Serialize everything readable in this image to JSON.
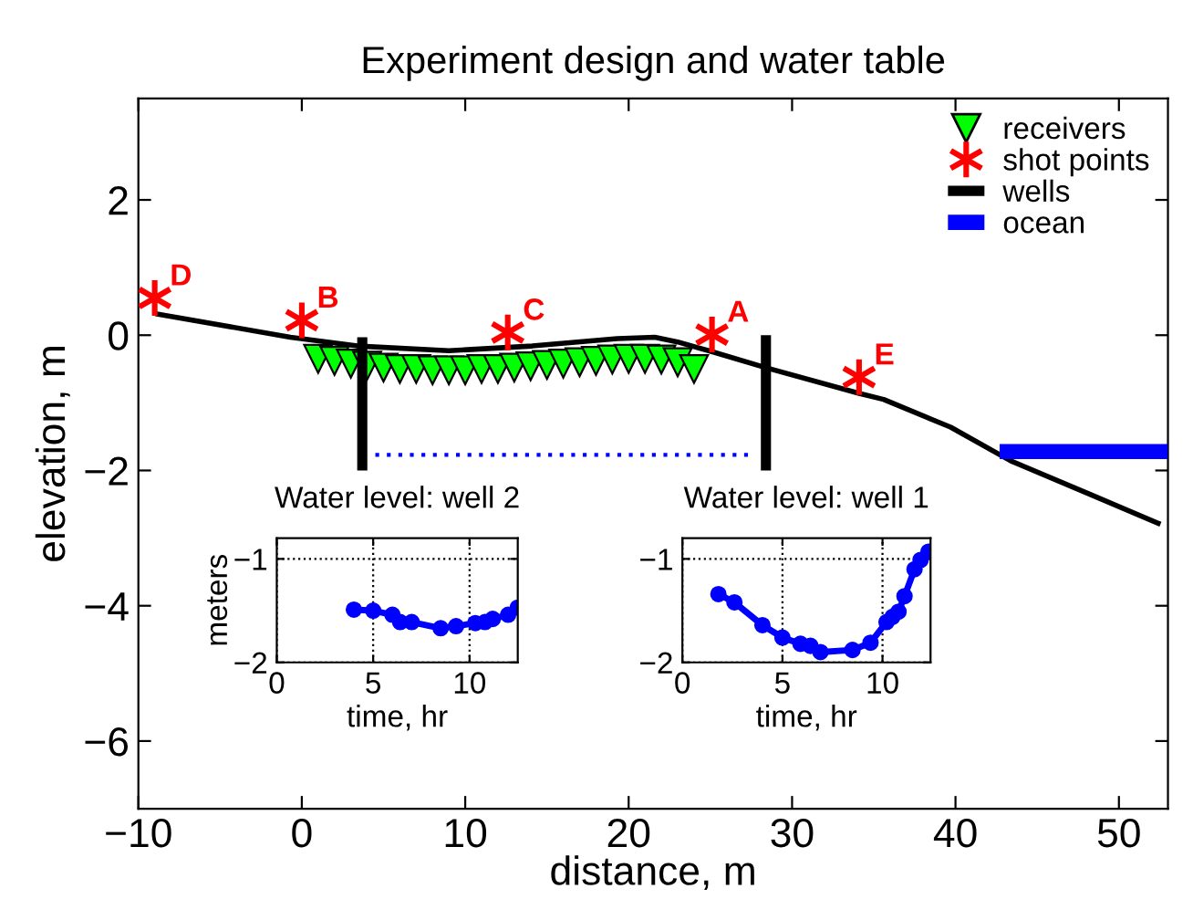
{
  "chart_data": [
    {
      "type": "line",
      "title": "Experiment design and water table",
      "xlabel": "distance, m",
      "ylabel": "elevation, m",
      "xlim": [
        -10,
        53
      ],
      "xticks": [
        -10,
        0,
        10,
        20,
        30,
        40,
        50
      ],
      "ylim": [
        -7,
        3.5
      ],
      "yticks": [
        -6,
        -4,
        -2,
        0,
        2
      ],
      "grid": false,
      "legend": "top right",
      "series": [
        {
          "type": "line",
          "color": "#000000",
          "x": [
            -8.8,
            -0.7,
            3.4,
            9.0,
            14.1,
            19.3,
            21.6,
            23.0,
            24.9,
            28.4,
            34.1,
            35.6,
            39.7,
            43.4,
            48.2,
            52.4
          ],
          "values": [
            0.31,
            -0.03,
            -0.16,
            -0.23,
            -0.16,
            -0.05,
            -0.03,
            -0.1,
            -0.23,
            -0.48,
            -0.86,
            -0.95,
            -1.36,
            -1.86,
            -2.35,
            -2.78
          ]
        },
        {
          "type": "scatter",
          "name": "receivers",
          "color": "#00ff00",
          "marker": "triangle",
          "x": [
            1,
            2,
            3,
            4,
            5,
            6,
            7,
            8,
            9,
            10,
            11,
            12,
            13,
            14,
            15,
            16,
            17,
            18,
            19,
            20,
            21,
            22,
            23,
            24
          ],
          "values": [
            -0.35,
            -0.38,
            -0.42,
            -0.45,
            -0.48,
            -0.5,
            -0.5,
            -0.52,
            -0.52,
            -0.52,
            -0.5,
            -0.5,
            -0.48,
            -0.46,
            -0.44,
            -0.42,
            -0.4,
            -0.38,
            -0.36,
            -0.35,
            -0.35,
            -0.36,
            -0.4,
            -0.5
          ]
        },
        {
          "type": "scatter",
          "name": "shot points",
          "color": "#ff0000",
          "marker": "cross",
          "x": [
            -9.0,
            0.0,
            12.6,
            25.1,
            34.1
          ],
          "values": [
            0.55,
            0.22,
            0.04,
            0.01,
            -0.62
          ]
        },
        {
          "type": "line",
          "name": "wells",
          "color": "#000000",
          "x": [
            3.7,
            3.7,
            16,
            28.4,
            28.4
          ],
          "values": [
            -0.03,
            -2.0,
            null,
            0.0,
            -2.0
          ]
        },
        {
          "type": "line",
          "color": "#0000ff",
          "line_style": "dotted",
          "x": [
            4.5,
            27.3
          ],
          "values": [
            -1.77,
            -1.77
          ]
        },
        {
          "type": "line",
          "name": "ocean",
          "color": "#0000ff",
          "x": [
            42.7,
            53
          ],
          "values": [
            -1.72,
            -1.72
          ]
        }
      ],
      "annotations": [
        {
          "text": "D",
          "x": -9.0,
          "y": 0.55
        },
        {
          "text": "B",
          "x": 0.0,
          "y": 0.22
        },
        {
          "text": "C",
          "x": 12.6,
          "y": 0.04
        },
        {
          "text": "A",
          "x": 25.1,
          "y": 0.01
        },
        {
          "text": "E",
          "x": 34.1,
          "y": -0.62
        }
      ]
    },
    {
      "type": "line",
      "title": "Water level: well 2",
      "xlabel": "time, hr",
      "ylabel": "meters",
      "xlim": [
        0,
        12.5
      ],
      "xticks": [
        0,
        5,
        10
      ],
      "ylim": [
        -2,
        -0.8
      ],
      "yticks": [
        -2,
        -1
      ],
      "grid": true,
      "marker": "circle",
      "series": [
        {
          "color": "#0000ff",
          "x": [
            4.0,
            5.0,
            6.0,
            6.4,
            7.0,
            8.5,
            9.3,
            10.3,
            10.8,
            11.2,
            12.0,
            12.5
          ],
          "values": [
            -1.49,
            -1.5,
            -1.54,
            -1.61,
            -1.61,
            -1.67,
            -1.65,
            -1.62,
            -1.61,
            -1.58,
            -1.54,
            -1.47
          ]
        }
      ]
    },
    {
      "type": "line",
      "title": "Water level: well 1",
      "xlabel": "time, hr",
      "xlim": [
        0,
        12.4
      ],
      "xticks": [
        0,
        5,
        10
      ],
      "ylim": [
        -2,
        -0.8
      ],
      "yticks": [
        -2,
        -1
      ],
      "grid": true,
      "marker": "circle",
      "series": [
        {
          "color": "#0000ff",
          "x": [
            1.8,
            2.6,
            4.0,
            5.0,
            5.9,
            6.4,
            6.9,
            8.5,
            9.4,
            10.2,
            10.5,
            10.8,
            11.1,
            11.6,
            11.9,
            12.3
          ],
          "values": [
            -1.34,
            -1.42,
            -1.64,
            -1.76,
            -1.82,
            -1.84,
            -1.9,
            -1.88,
            -1.81,
            -1.61,
            -1.56,
            -1.51,
            -1.36,
            -1.1,
            -1.01,
            -0.93
          ]
        }
      ]
    }
  ]
}
